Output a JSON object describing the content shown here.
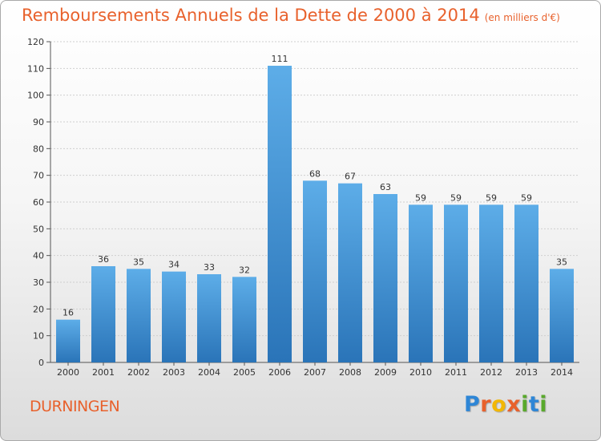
{
  "title": "Remboursements Annuels de la Dette de 2000 à 2014",
  "subtitle": "(en milliers d'€)",
  "place": "DURNINGEN",
  "logo": {
    "letters": [
      "P",
      "r",
      "o",
      "x",
      "i",
      "t",
      "i"
    ],
    "colors": [
      "#2e86d6",
      "#e8612c",
      "#f2b705",
      "#e8612c",
      "#59a92c",
      "#2e86d6",
      "#59a92c"
    ]
  },
  "colors": {
    "bar_top": "#5dade8",
    "bar_bottom": "#2a74b8",
    "title": "#e8612c",
    "grid": "#cfcfcf"
  },
  "chart_data": {
    "type": "bar",
    "title": "Remboursements Annuels de la Dette de 2000 à 2014",
    "xlabel": "",
    "ylabel": "",
    "ylim": [
      0,
      120
    ],
    "yticks": [
      0,
      10,
      20,
      30,
      40,
      50,
      60,
      70,
      80,
      90,
      100,
      110,
      120
    ],
    "categories": [
      "2000",
      "2001",
      "2002",
      "2003",
      "2004",
      "2005",
      "2006",
      "2007",
      "2008",
      "2009",
      "2010",
      "2011",
      "2012",
      "2013",
      "2014"
    ],
    "values": [
      16,
      36,
      35,
      34,
      33,
      32,
      111,
      68,
      67,
      63,
      59,
      59,
      59,
      59,
      35
    ],
    "grid": true,
    "unit": "milliers d'€"
  }
}
